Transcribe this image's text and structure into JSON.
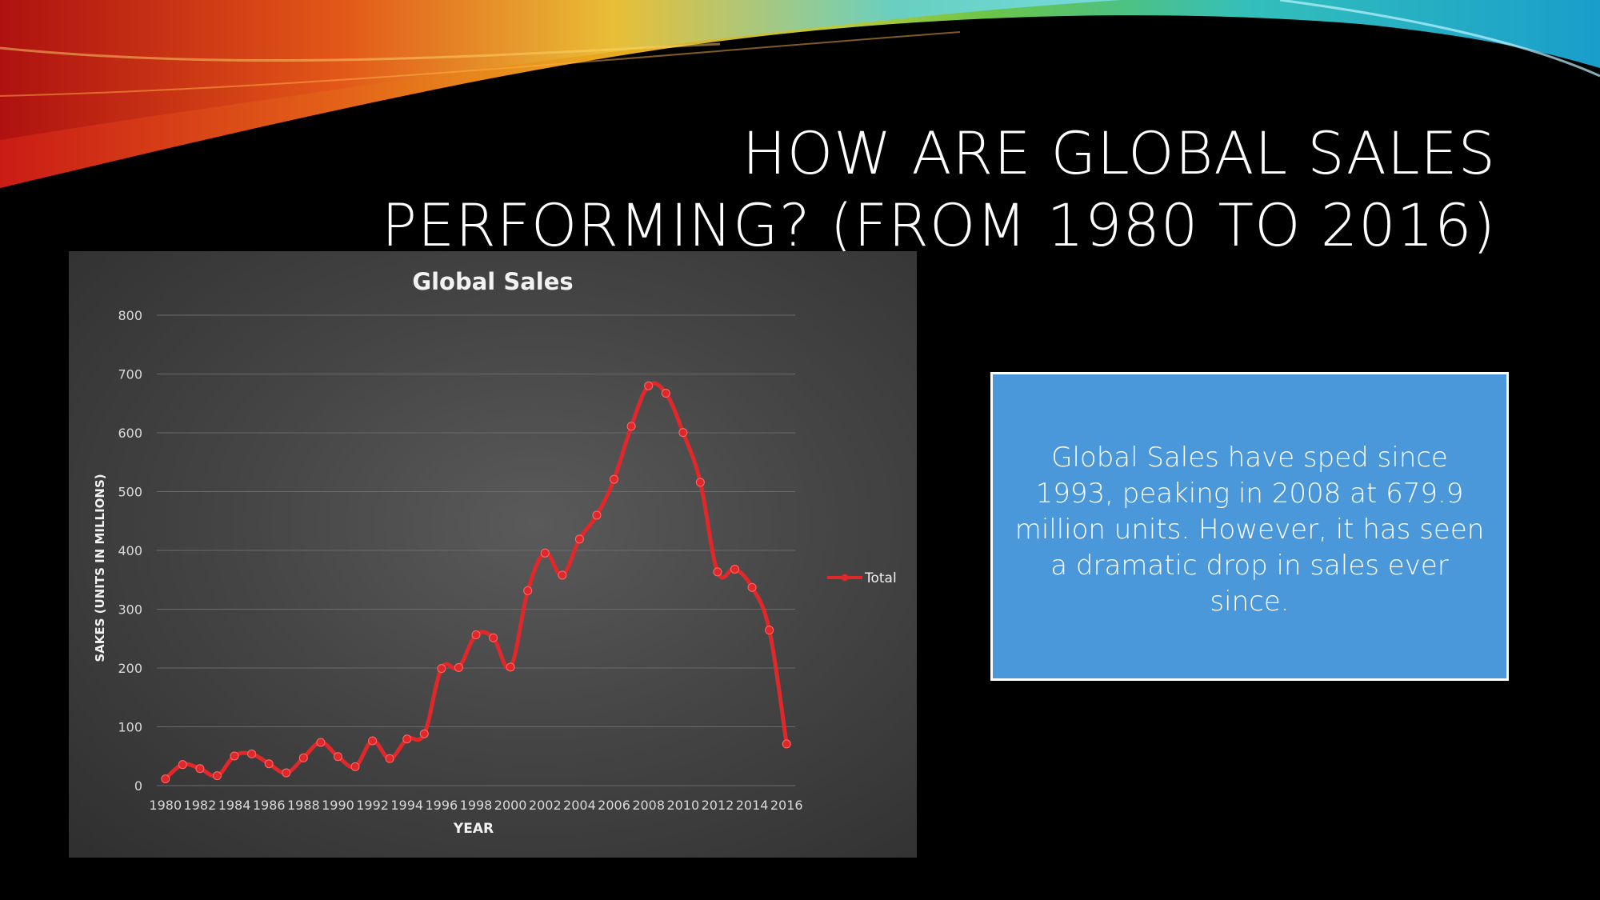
{
  "slide": {
    "title_line1": "HOW ARE GLOBAL SALES",
    "title_line2": "PERFORMING? (FROM 1980 TO 2016)"
  },
  "callout": {
    "text": "Global Sales have sped since 1993, peaking in 2008 at 679.9 million units. However, it has seen a dramatic drop in sales ever since."
  },
  "chart_data": {
    "type": "line",
    "title": "Global Sales",
    "xlabel": "YEAR",
    "ylabel": "SAKES (UNITS IN MILLIONS)",
    "ylim": [
      0,
      800
    ],
    "yticks": [
      0,
      100,
      200,
      300,
      400,
      500,
      600,
      700,
      800
    ],
    "grid": true,
    "legend_position": "right",
    "x": [
      1980,
      1981,
      1982,
      1983,
      1984,
      1985,
      1986,
      1987,
      1988,
      1989,
      1990,
      1991,
      1992,
      1993,
      1994,
      1995,
      1996,
      1997,
      1998,
      1999,
      2000,
      2001,
      2002,
      2003,
      2004,
      2005,
      2006,
      2007,
      2008,
      2009,
      2010,
      2011,
      2012,
      2013,
      2014,
      2015,
      2016
    ],
    "x_tick_labels": [
      "1980",
      "1982",
      "1984",
      "1986",
      "1988",
      "1990",
      "1992",
      "1994",
      "1996",
      "1998",
      "2000",
      "2002",
      "2004",
      "2006",
      "2008",
      "2010",
      "2012",
      "2014",
      "2016"
    ],
    "series": [
      {
        "name": "Total",
        "color": "#e0282a",
        "values": [
          11.4,
          35.8,
          28.9,
          16.8,
          50.4,
          53.9,
          37.1,
          21.7,
          47.2,
          73.5,
          49.4,
          32.2,
          76.2,
          45.9,
          79.2,
          88.1,
          199.2,
          200.9,
          256.5,
          251.3,
          201.6,
          331.5,
          395.5,
          357.9,
          419.3,
          459.9,
          521.0,
          611.1,
          679.9,
          667.3,
          600.5,
          515.8,
          363.5,
          368.1,
          337.1,
          264.4,
          70.9
        ]
      }
    ]
  }
}
